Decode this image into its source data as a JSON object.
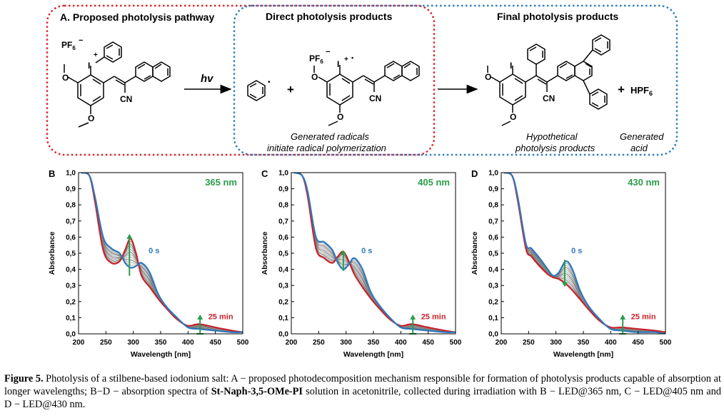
{
  "scheme": {
    "panel_a_title": "A. Proposed photolysis pathway",
    "direct_title": "Direct photolysis products",
    "final_title": "Final photolysis products",
    "pf6": "PF",
    "pf6_sub": "6",
    "minus": "−",
    "plus": "+",
    "radical_dot": "•",
    "iodine": "I",
    "cn": "CN",
    "hv": "hv",
    "plus_sign": "+",
    "hpf6": "HPF",
    "hpf6_sub": "6",
    "radicals_note_1": "Generated radicals",
    "radicals_note_2": "initiate radical polymerization",
    "hypothetical_1": "Hypothetical",
    "hypothetical_2": "photolysis products",
    "acid_1": "Generated",
    "acid_2": "acid",
    "colors": {
      "red_box": "#d9262b",
      "blue_box": "#2e7fc1"
    }
  },
  "chart_data": [
    {
      "type": "line",
      "panel_label": "B",
      "wavelength_label": "365 nm",
      "xlabel": "Wavelength [nm]",
      "ylabel": "Absorbance",
      "xlim": [
        200,
        500
      ],
      "ylim": [
        0,
        1
      ],
      "x_ticks": [
        "200",
        "250",
        "300",
        "350",
        "400",
        "450",
        "500"
      ],
      "y_ticks": [
        "0,0",
        "0,1",
        "0,2",
        "0,3",
        "0,4",
        "0,5",
        "0,6",
        "0,7",
        "0,8",
        "0,9",
        "1,0"
      ],
      "start_label": "0 s",
      "end_label": "25 min",
      "arrows": [
        {
          "x": 293,
          "from": 0.36,
          "to": 0.62,
          "color": "#2a9d4a"
        },
        {
          "x": 422,
          "from": 0.0,
          "to": 0.12,
          "color": "#2a9d4a"
        }
      ],
      "series": [
        {
          "time": "0 s",
          "color": "#2e78bd",
          "width": 2.2,
          "x": [
            205,
            220,
            230,
            245,
            260,
            275,
            285,
            295,
            305,
            315,
            330,
            345,
            360,
            380,
            400,
            420,
            450,
            480,
            500
          ],
          "y": [
            1.0,
            0.98,
            0.85,
            0.6,
            0.53,
            0.5,
            0.44,
            0.41,
            0.42,
            0.44,
            0.38,
            0.25,
            0.17,
            0.1,
            0.04,
            0.03,
            0.02,
            0.01,
            0.01
          ]
        },
        {
          "time": "25 min",
          "color": "#c8232b",
          "width": 2.2,
          "x": [
            205,
            220,
            230,
            245,
            260,
            275,
            285,
            295,
            305,
            315,
            330,
            345,
            360,
            380,
            400,
            420,
            450,
            480,
            500
          ],
          "y": [
            1.0,
            0.98,
            0.82,
            0.52,
            0.44,
            0.45,
            0.52,
            0.59,
            0.5,
            0.36,
            0.29,
            0.22,
            0.16,
            0.09,
            0.05,
            0.06,
            0.04,
            0.02,
            0.01
          ]
        }
      ],
      "intermediates": 10
    },
    {
      "type": "line",
      "panel_label": "C",
      "wavelength_label": "405 nm",
      "xlabel": "Wavelength [nm]",
      "ylabel": "Absorbance",
      "xlim": [
        200,
        500
      ],
      "ylim": [
        0,
        1
      ],
      "x_ticks": [
        "200",
        "250",
        "300",
        "350",
        "400",
        "450",
        "500"
      ],
      "y_ticks": [
        "0,0",
        "0,1",
        "0,2",
        "0,3",
        "0,4",
        "0,5",
        "0,6",
        "0,7",
        "0,8",
        "0,9",
        "1,0"
      ],
      "start_label": "0 s",
      "end_label": "25 min",
      "arrows": [
        {
          "x": 295,
          "from": 0.39,
          "to": 0.52,
          "color": "#2a9d4a"
        },
        {
          "x": 422,
          "from": 0.0,
          "to": 0.12,
          "color": "#2a9d4a"
        }
      ],
      "series": [
        {
          "time": "0 s",
          "color": "#2e78bd",
          "width": 2.2,
          "x": [
            205,
            220,
            230,
            245,
            260,
            275,
            285,
            295,
            305,
            315,
            330,
            345,
            360,
            380,
            400,
            420,
            450,
            480,
            500
          ],
          "y": [
            1.0,
            0.98,
            0.88,
            0.6,
            0.57,
            0.52,
            0.44,
            0.4,
            0.43,
            0.47,
            0.4,
            0.26,
            0.18,
            0.1,
            0.04,
            0.03,
            0.02,
            0.01,
            0.01
          ]
        },
        {
          "time": "25 min",
          "color": "#c8232b",
          "width": 2.2,
          "x": [
            205,
            220,
            230,
            245,
            260,
            275,
            285,
            295,
            305,
            315,
            330,
            345,
            360,
            380,
            400,
            420,
            450,
            480,
            500
          ],
          "y": [
            1.0,
            0.98,
            0.85,
            0.53,
            0.47,
            0.44,
            0.48,
            0.51,
            0.45,
            0.37,
            0.29,
            0.22,
            0.16,
            0.09,
            0.05,
            0.06,
            0.04,
            0.02,
            0.01
          ]
        }
      ],
      "intermediates": 10
    },
    {
      "type": "line",
      "panel_label": "D",
      "wavelength_label": "430 nm",
      "xlabel": "Wavelength [nm]",
      "ylabel": "Absorbance",
      "xlim": [
        200,
        500
      ],
      "ylim": [
        0,
        1
      ],
      "x_ticks": [
        "200",
        "250",
        "300",
        "350",
        "400",
        "450",
        "500"
      ],
      "y_ticks": [
        "0,0",
        "0,1",
        "0,2",
        "0,3",
        "0,4",
        "0,5",
        "0,6",
        "0,7",
        "0,8",
        "0,9",
        "1,0"
      ],
      "start_label": "0 s",
      "end_label": "25 min",
      "arrows": [
        {
          "x": 316,
          "from": 0.46,
          "to": 0.29,
          "color": "#2a9d4a"
        },
        {
          "x": 422,
          "from": 0.0,
          "to": 0.12,
          "color": "#2a9d4a"
        }
      ],
      "series": [
        {
          "time": "0 s",
          "color": "#2e78bd",
          "width": 2.2,
          "x": [
            205,
            220,
            230,
            245,
            255,
            270,
            285,
            295,
            305,
            318,
            330,
            345,
            360,
            380,
            400,
            420,
            450,
            480,
            500
          ],
          "y": [
            1.0,
            0.98,
            0.85,
            0.56,
            0.53,
            0.47,
            0.4,
            0.36,
            0.38,
            0.45,
            0.4,
            0.26,
            0.17,
            0.09,
            0.03,
            0.02,
            0.01,
            0.01,
            0.0
          ]
        },
        {
          "time": "25 min",
          "color": "#c8232b",
          "width": 2.2,
          "x": [
            205,
            220,
            230,
            245,
            255,
            270,
            285,
            295,
            305,
            318,
            330,
            345,
            360,
            380,
            400,
            420,
            450,
            480,
            500
          ],
          "y": [
            1.0,
            0.98,
            0.83,
            0.53,
            0.48,
            0.42,
            0.37,
            0.35,
            0.34,
            0.31,
            0.27,
            0.21,
            0.15,
            0.08,
            0.04,
            0.04,
            0.03,
            0.02,
            0.01
          ]
        }
      ],
      "intermediates": 10
    }
  ],
  "caption": {
    "label": "Figure 5.",
    "text_1": " Photolysis of a stilbene-based iodonium salt: A − proposed photodecomposition mechanism responsible for formation of photolysis products capable of absorption at longer wavelengths; B−D − absorption spectra of ",
    "compound": "St-Naph-3,5-OMe-PI",
    "text_2": " solution in acetonitrile, collected during irradiation with B − LED@365 nm, C − LED@405 nm and D − LED@430 nm."
  }
}
